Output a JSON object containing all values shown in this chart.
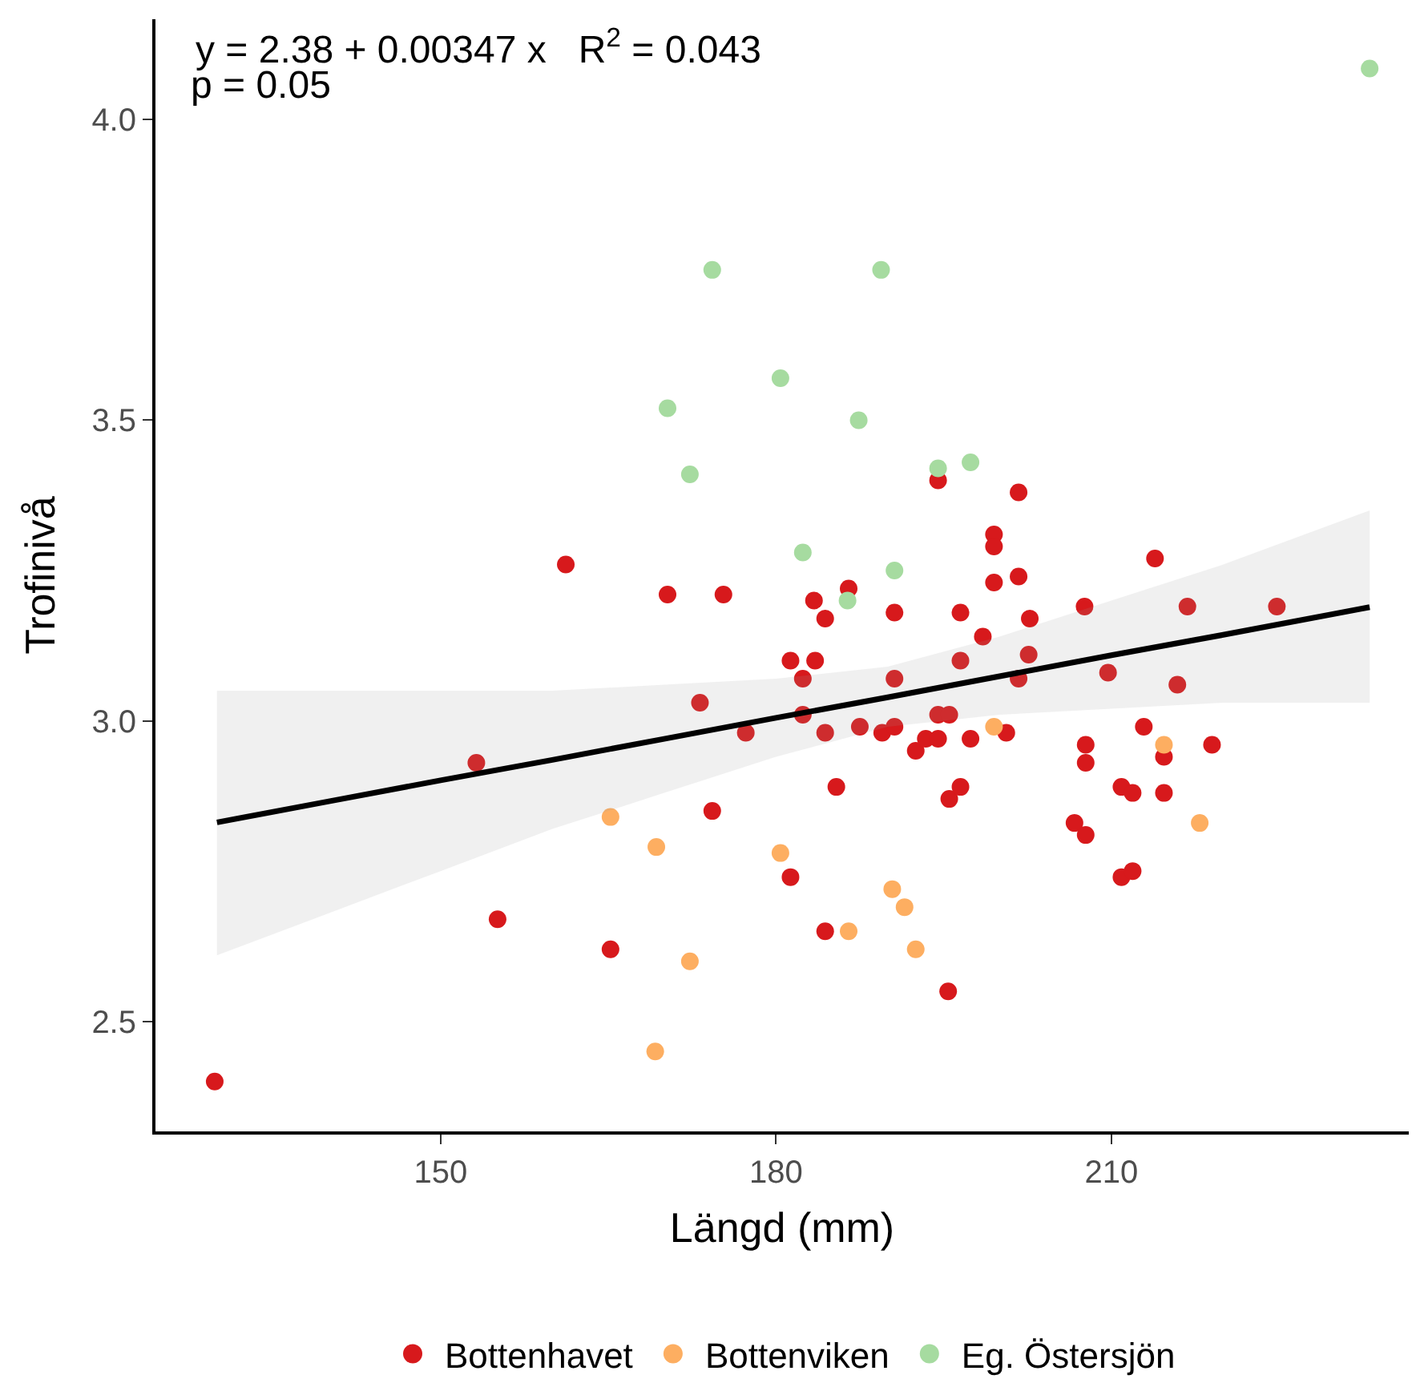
{
  "chart_data": {
    "type": "scatter",
    "xlabel": "Längd (mm)",
    "ylabel": "Trofinivå",
    "xlim": [
      124.5,
      236.6
    ],
    "xticks": [
      150,
      180,
      210
    ],
    "ylim": [
      2.317,
      4.167
    ],
    "yticks": [
      {
        "value": 2.5,
        "label": "2.5"
      },
      {
        "value": 3.0,
        "label": "3.0"
      },
      {
        "value": 3.5,
        "label": "3.5"
      },
      {
        "value": 4.0,
        "label": "4.0"
      }
    ],
    "legend": "bottom",
    "marker": "circle",
    "annotations": [
      "y = 2.38 + 0.00347 x   R$^{2}$ = 0.043",
      "p = 0.05"
    ],
    "series": [
      {
        "name": "Bottenhavet",
        "color": "#d7191c",
        "x": [
          129.8,
          153.2,
          155.1,
          165.2,
          161.2,
          170.3,
          175.3,
          173.2,
          177.3,
          174.3,
          181.3,
          183.5,
          183.4,
          184.4,
          182.4,
          182.4,
          184.4,
          181.3,
          184.4,
          185.4,
          186.5,
          187.5,
          189.5,
          190.6,
          190.6,
          190.6,
          192.5,
          193.4,
          194.5,
          194.5,
          194.5,
          195.5,
          195.5,
          196.5,
          196.5,
          196.5,
          197.4,
          198.5,
          199.5,
          199.5,
          199.5,
          200.6,
          201.7,
          201.7,
          201.7,
          202.6,
          202.7,
          195.4,
          206.7,
          207.7,
          207.7,
          207.7,
          207.6,
          209.7,
          210.9,
          210.9,
          211.9,
          211.9,
          212.9,
          213.9,
          214.7,
          214.7,
          215.9,
          216.8,
          219.0,
          224.8
        ],
        "values": [
          2.4,
          2.93,
          2.67,
          2.62,
          3.26,
          3.21,
          3.21,
          3.03,
          2.98,
          2.85,
          3.1,
          3.1,
          3.2,
          3.17,
          3.07,
          3.01,
          2.98,
          2.74,
          2.65,
          2.89,
          3.22,
          2.99,
          2.98,
          3.18,
          3.07,
          2.99,
          2.95,
          2.97,
          3.4,
          3.01,
          2.97,
          3.01,
          2.87,
          3.18,
          3.1,
          2.89,
          2.97,
          3.14,
          3.31,
          3.29,
          3.23,
          2.98,
          3.38,
          3.24,
          3.07,
          3.11,
          3.17,
          2.55,
          2.83,
          2.96,
          2.93,
          2.81,
          3.19,
          3.08,
          2.89,
          2.74,
          2.75,
          2.88,
          2.99,
          3.27,
          2.94,
          2.88,
          3.06,
          3.19,
          2.96,
          3.19
        ]
      },
      {
        "name": "Bottenviken",
        "color": "#fdae61",
        "x": [
          165.2,
          169.3,
          180.4,
          199.5,
          214.7,
          217.9,
          172.3,
          169.2,
          190.4,
          186.5,
          191.5,
          192.5
        ],
        "values": [
          2.84,
          2.79,
          2.78,
          2.99,
          2.96,
          2.83,
          2.6,
          2.45,
          2.72,
          2.65,
          2.69,
          2.62
        ]
      },
      {
        "name": "Eg. Östersjön",
        "color": "#a6dba0",
        "x": [
          233.1,
          174.3,
          189.4,
          180.4,
          170.3,
          187.4,
          172.3,
          194.5,
          197.4,
          182.4,
          190.6,
          186.4
        ],
        "values": [
          4.085,
          3.75,
          3.75,
          3.57,
          3.52,
          3.5,
          3.41,
          3.42,
          3.43,
          3.28,
          3.25,
          3.2
        ]
      },
      {
        "type": "line",
        "marker": "none",
        "color": "#000000",
        "x": [
          130,
          140,
          150,
          160,
          170,
          180,
          190,
          200,
          210,
          220,
          233.1
        ],
        "values": [
          2.831,
          2.866,
          2.901,
          2.935,
          2.97,
          3.005,
          3.039,
          3.074,
          3.109,
          3.143,
          3.189
        ],
        "lower": [
          2.61,
          2.68,
          2.75,
          2.82,
          2.88,
          2.94,
          2.99,
          3.01,
          3.02,
          3.03,
          3.03
        ],
        "upper": [
          3.05,
          3.05,
          3.05,
          3.05,
          3.06,
          3.07,
          3.09,
          3.14,
          3.2,
          3.26,
          3.35
        ]
      }
    ]
  }
}
